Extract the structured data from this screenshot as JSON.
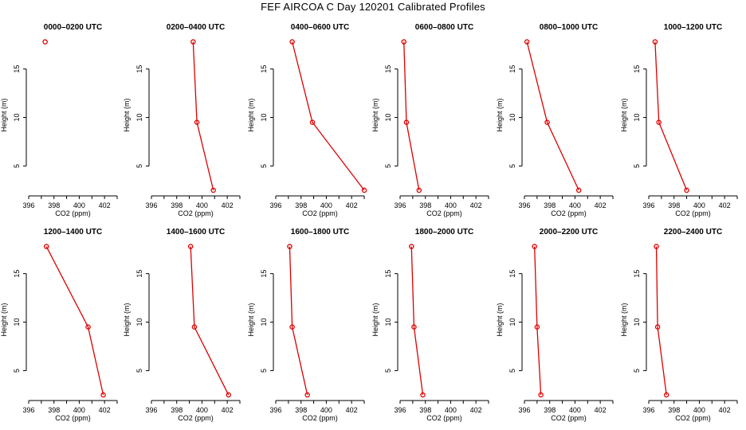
{
  "title": "FEF AIRCOA C  Day 120201  Calibrated Profiles",
  "colors": {
    "line": "#dd0000",
    "axis": "#000000"
  },
  "chart_data": {
    "type": "line",
    "xlabel": "CO2 (ppm)",
    "ylabel": "Height (m)",
    "xlim": [
      396,
      403
    ],
    "ylim": [
      2,
      18.5
    ],
    "xticks": [
      396,
      398,
      400,
      402
    ],
    "yticks": [
      5,
      10,
      15
    ],
    "heights": [
      2.5,
      9.5,
      17.8
    ],
    "panels": [
      {
        "title": "0000–0200 UTC",
        "co2": [
          null,
          null,
          397.3
        ]
      },
      {
        "title": "0200–0400 UTC",
        "co2": [
          400.9,
          399.6,
          399.3
        ]
      },
      {
        "title": "0400–0600 UTC",
        "co2": [
          403.0,
          398.9,
          397.3
        ]
      },
      {
        "title": "0600–0800 UTC",
        "co2": [
          397.5,
          396.5,
          396.3
        ]
      },
      {
        "title": "0800–1000 UTC",
        "co2": [
          400.3,
          397.8,
          396.2
        ]
      },
      {
        "title": "1000–1200 UTC",
        "co2": [
          399.0,
          396.8,
          396.5
        ]
      },
      {
        "title": "1200–1400 UTC",
        "co2": [
          401.9,
          400.7,
          397.4
        ]
      },
      {
        "title": "1400–1600 UTC",
        "co2": [
          402.1,
          399.4,
          399.1
        ]
      },
      {
        "title": "1600–1800 UTC",
        "co2": [
          398.5,
          397.3,
          397.1
        ]
      },
      {
        "title": "1800–2000 UTC",
        "co2": [
          397.8,
          397.1,
          396.9
        ]
      },
      {
        "title": "2000–2200 UTC",
        "co2": [
          397.3,
          397.0,
          396.8
        ]
      },
      {
        "title": "2200–2400 UTC",
        "co2": [
          397.4,
          396.7,
          396.6
        ]
      }
    ]
  }
}
